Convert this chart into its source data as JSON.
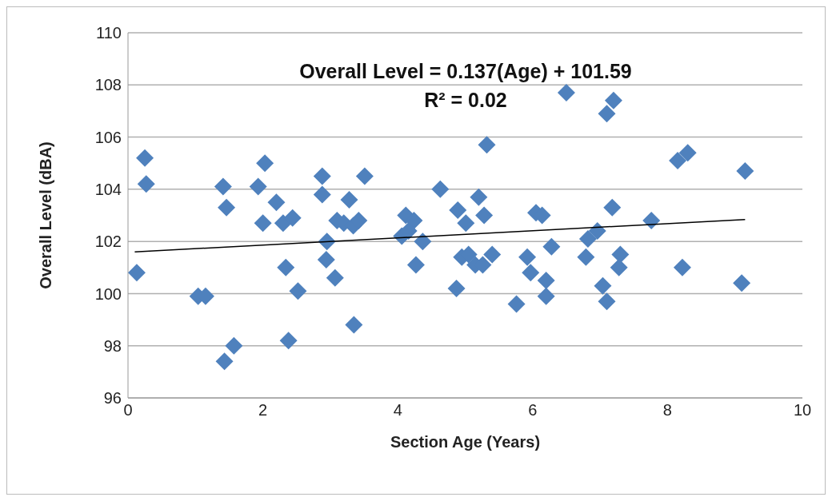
{
  "chart_data": {
    "type": "scatter",
    "xlabel": "Section Age (Years)",
    "ylabel": "Overall Level (dBA)",
    "annotations": [
      "Overall Level = 0.137(Age) + 101.59",
      "R² = 0.02"
    ],
    "xlim": [
      0,
      10
    ],
    "xticks": [
      0,
      2,
      4,
      6,
      8,
      10
    ],
    "ylim": [
      96,
      110
    ],
    "yticks": [
      96,
      98,
      100,
      102,
      104,
      106,
      108,
      110
    ],
    "grid": "y",
    "series": [
      {
        "color": "#4f81bd",
        "marker": "diamond",
        "x": [
          0.13,
          0.25,
          0.27,
          1.04,
          1.15,
          1.41,
          1.46,
          1.43,
          1.57,
          1.93,
          2.03,
          2.0,
          2.2,
          2.3,
          2.44,
          2.34,
          2.52,
          2.38,
          2.88,
          2.88,
          2.95,
          2.94,
          3.07,
          3.1,
          3.2,
          3.28,
          3.34,
          3.42,
          3.35,
          3.51,
          4.06,
          4.12,
          4.24,
          4.16,
          4.27,
          4.37,
          4.63,
          4.87,
          4.89,
          5.01,
          4.95,
          5.05,
          5.15,
          5.2,
          5.26,
          5.28,
          5.32,
          5.4,
          5.76,
          5.92,
          5.97,
          6.05,
          6.14,
          6.28,
          6.2,
          6.2,
          6.5,
          6.79,
          6.82,
          6.96,
          7.04,
          7.1,
          7.1,
          7.2,
          7.18,
          7.3,
          7.28,
          7.76,
          8.15,
          8.3,
          8.22,
          9.1,
          9.15
        ],
        "values": [
          100.8,
          105.2,
          104.2,
          99.9,
          99.9,
          104.1,
          103.3,
          97.4,
          98.0,
          104.1,
          105.0,
          102.7,
          103.5,
          102.7,
          102.9,
          101.0,
          100.1,
          98.2,
          104.5,
          103.8,
          102.0,
          101.3,
          100.6,
          102.8,
          102.7,
          103.6,
          102.6,
          102.8,
          98.8,
          104.5,
          102.2,
          103.0,
          102.8,
          102.4,
          101.1,
          102.0,
          104.0,
          100.2,
          103.2,
          102.7,
          101.4,
          101.5,
          101.1,
          103.7,
          101.1,
          103.0,
          105.7,
          101.5,
          99.6,
          101.4,
          100.8,
          103.1,
          103.0,
          101.8,
          100.5,
          99.9,
          107.7,
          101.4,
          102.1,
          102.4,
          100.3,
          99.7,
          106.9,
          107.4,
          103.3,
          101.5,
          101.0,
          102.8,
          105.1,
          105.4,
          101.0,
          100.4,
          104.7
        ]
      },
      {
        "type": "line",
        "marker": "none",
        "color": "#000000",
        "x": [
          0.1,
          9.15
        ],
        "values": [
          101.6,
          102.84
        ]
      }
    ]
  }
}
